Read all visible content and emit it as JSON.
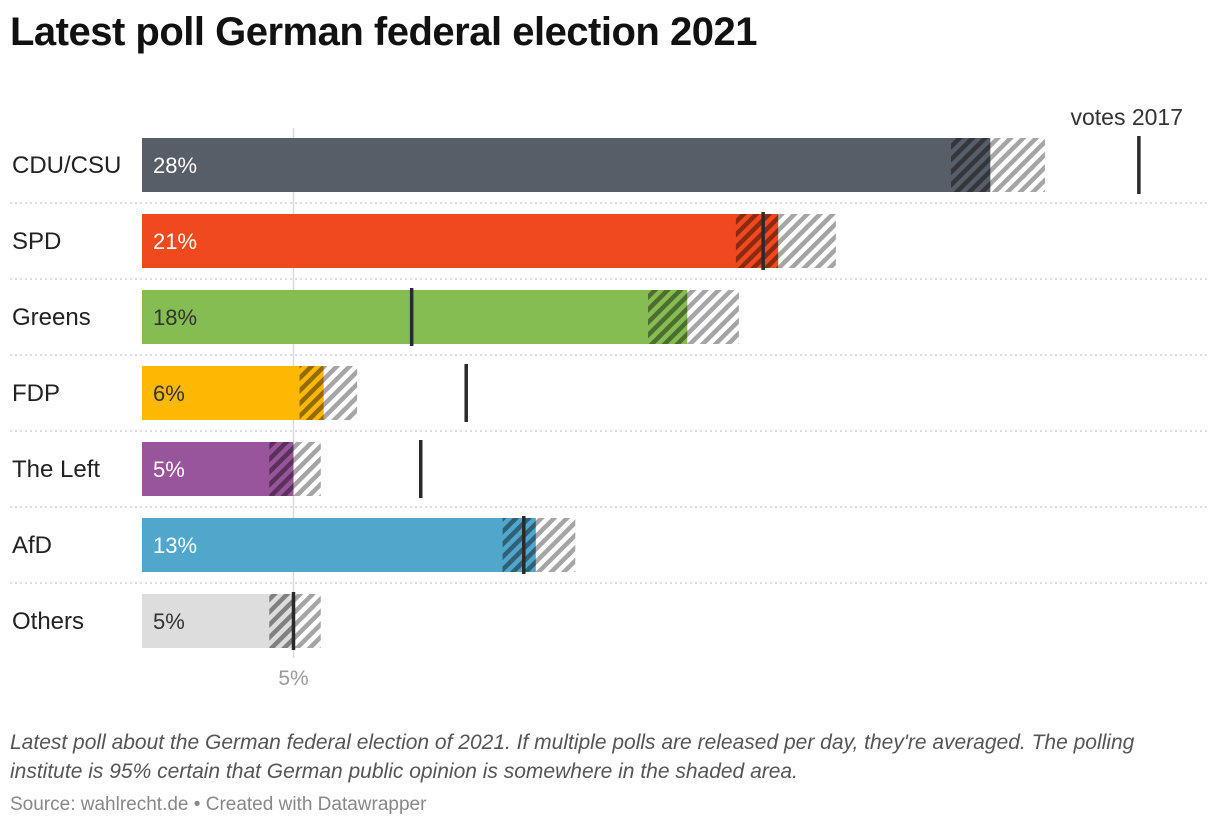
{
  "title": "Latest poll German federal election 2021",
  "notes": "Latest poll about the German federal election of 2021. If multiple polls are released per day, they're averaged. The polling institute is 95% certain that German public opinion is somewhere in the shaded area.",
  "source": {
    "source_label": "Source: wahlrecht.de",
    "separator": "•",
    "credit": "Created with Datawrapper"
  },
  "chart_data": {
    "type": "bar",
    "orientation": "horizontal",
    "categories": [
      "CDU/CSU",
      "SPD",
      "Greens",
      "FDP",
      "The Left",
      "AfD",
      "Others"
    ],
    "values": [
      28,
      21,
      18,
      6,
      5,
      13,
      5
    ],
    "value_labels": [
      "28%",
      "21%",
      "18%",
      "6%",
      "5%",
      "13%",
      "5%"
    ],
    "confidence_interval": [
      [
        26.7,
        29.8
      ],
      [
        19.6,
        22.9
      ],
      [
        16.7,
        19.7
      ],
      [
        5.2,
        7.1
      ],
      [
        4.2,
        5.9
      ],
      [
        11.9,
        14.3
      ],
      [
        4.2,
        5.9
      ]
    ],
    "votes_2017": [
      32.9,
      20.5,
      8.9,
      10.7,
      9.2,
      12.6,
      5.0
    ],
    "marker_label": "votes 2017",
    "reference_line": {
      "value": 5,
      "label": "5%"
    },
    "colors": [
      "#585e67",
      "#f0491e",
      "#85bd53",
      "#fdb803",
      "#99559c",
      "#51a6cc",
      "#dddddd"
    ],
    "label_colors": [
      "#ffffff",
      "#ffffff",
      "#333333",
      "#333333",
      "#ffffff",
      "#ffffff",
      "#333333"
    ],
    "xlim": [
      0,
      33.2
    ],
    "grid": false,
    "legend": "none"
  }
}
